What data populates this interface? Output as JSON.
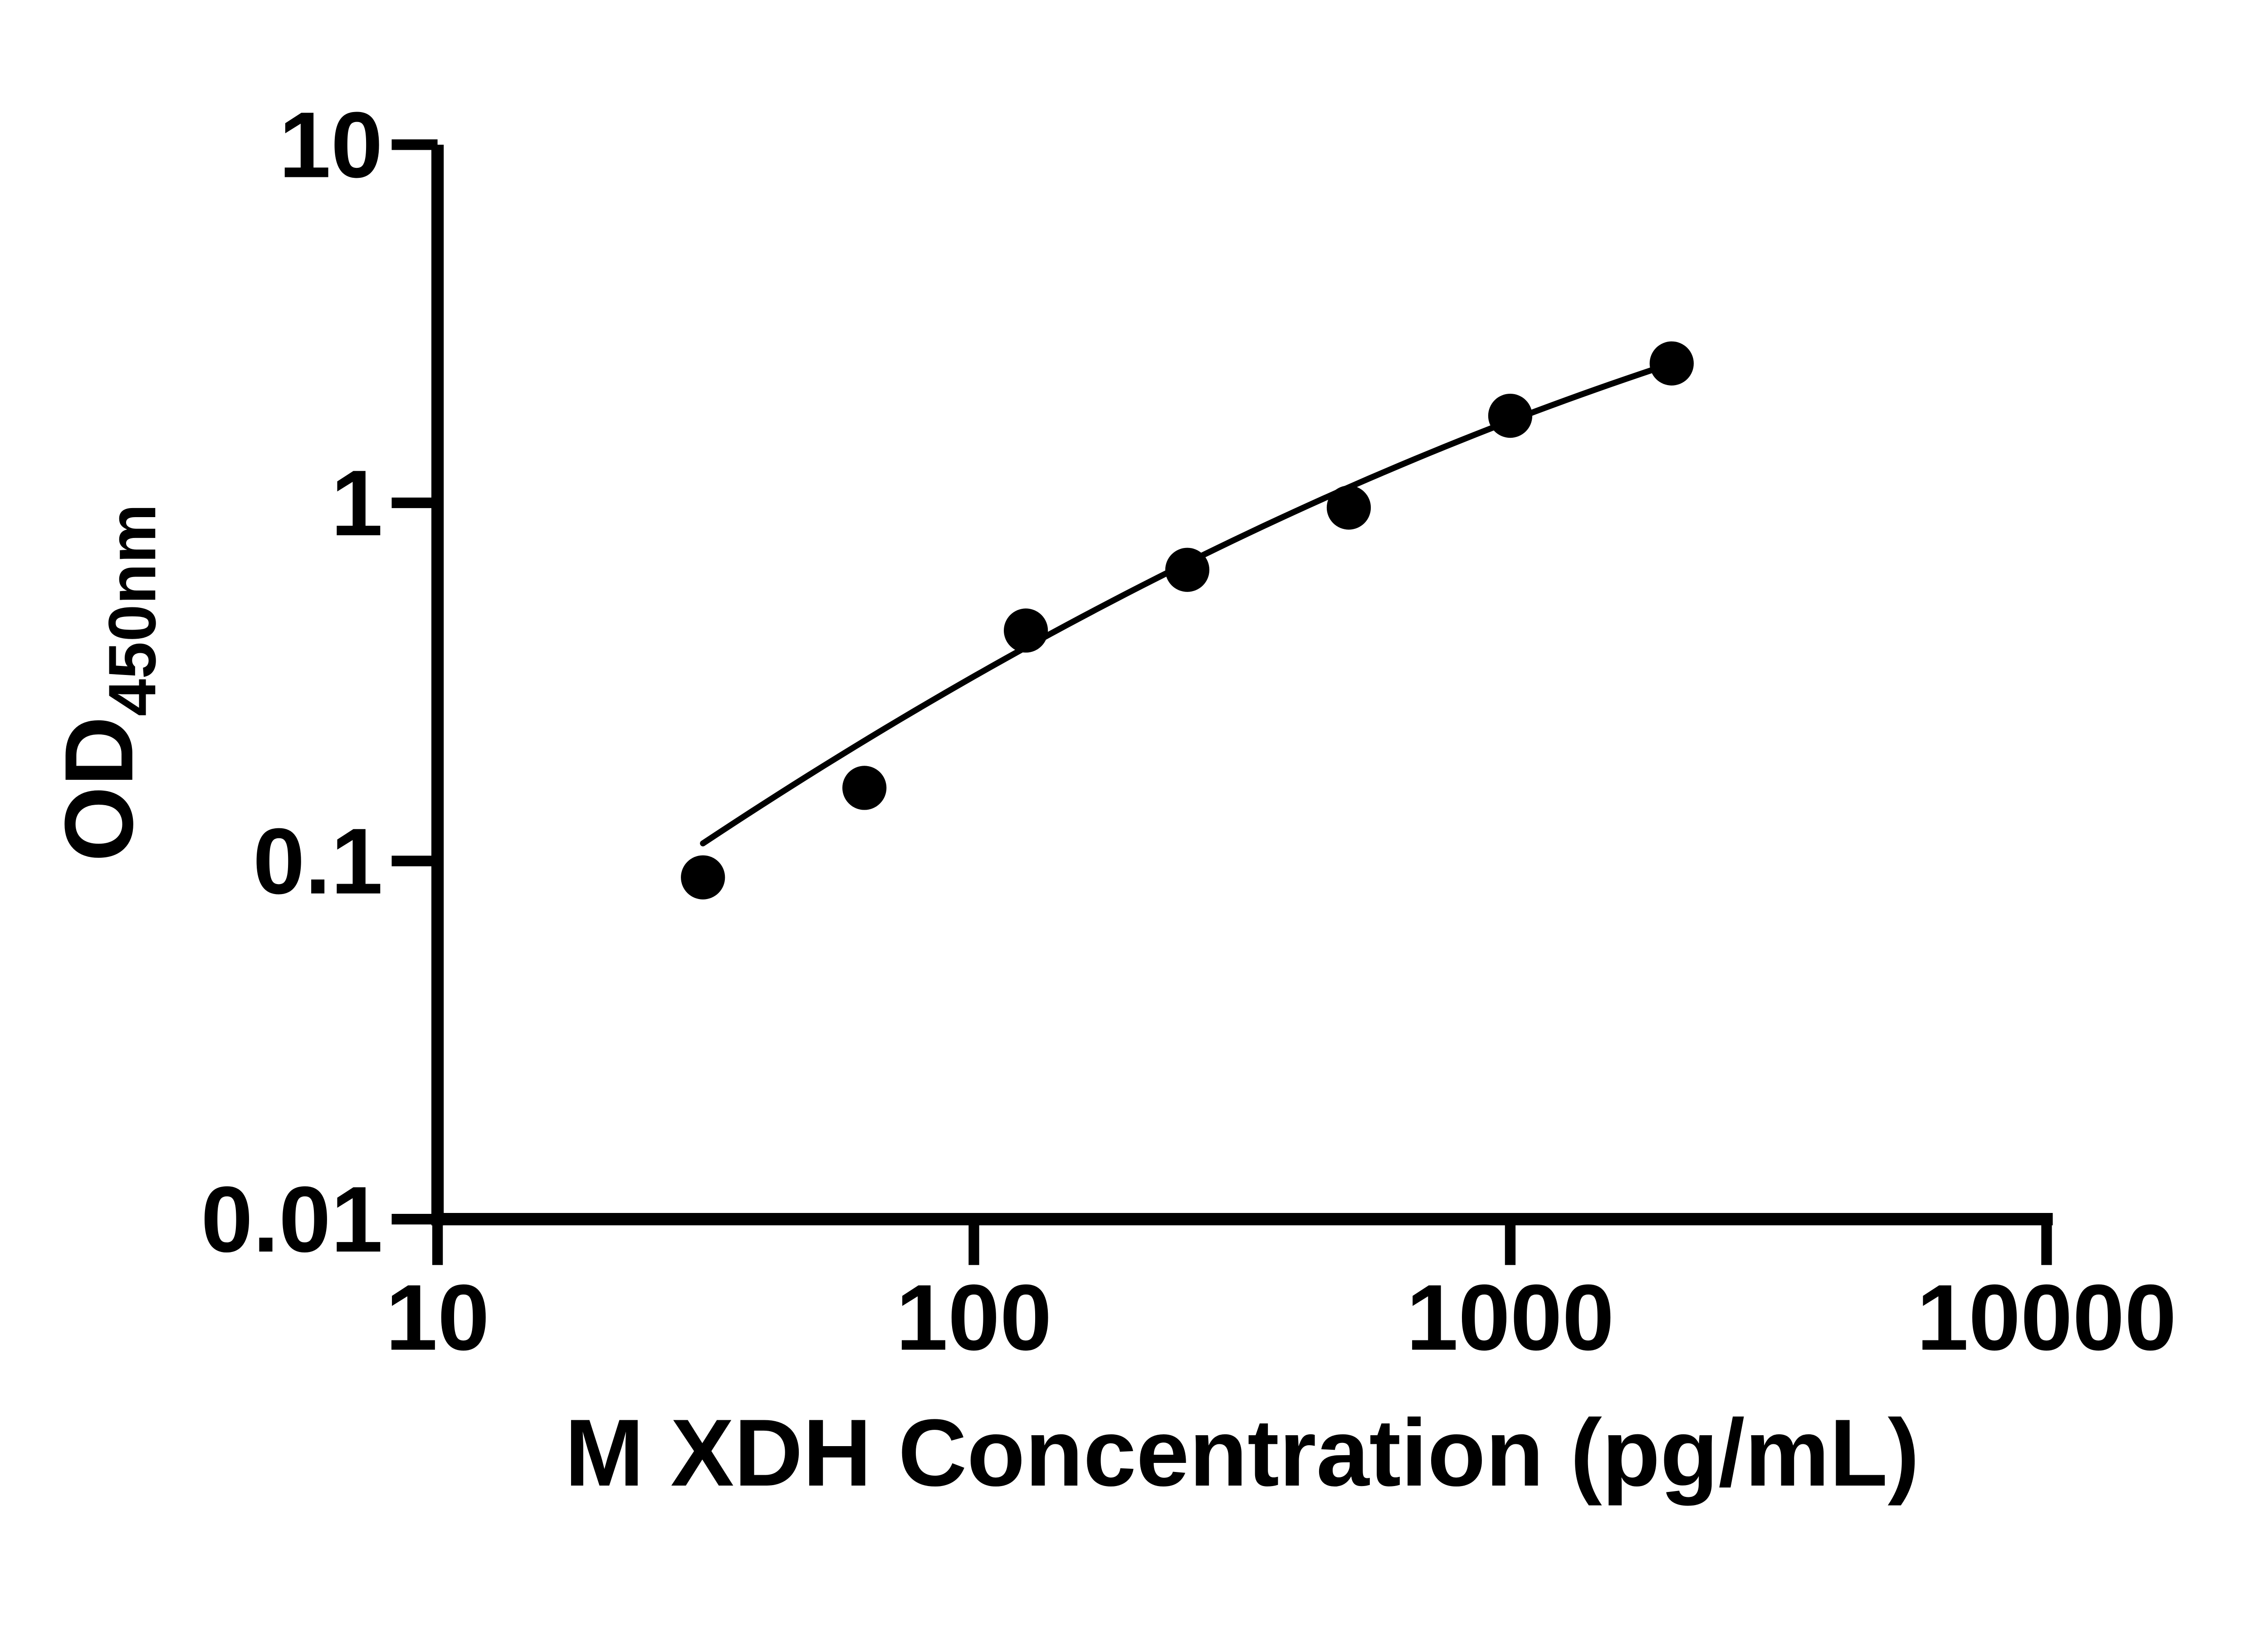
{
  "chart_data": {
    "type": "scatter",
    "title": "",
    "xlabel": "M XDH Concentration (pg/mL)",
    "ylabel": "OD",
    "ylabel_subscript": "450nm",
    "x_scale": "log10",
    "y_scale": "log10",
    "xlim": [
      10,
      10000
    ],
    "ylim": [
      0.01,
      10
    ],
    "grid": false,
    "legend": null,
    "x_ticks": [
      {
        "value": 10,
        "label": "10"
      },
      {
        "value": 100,
        "label": "100"
      },
      {
        "value": 1000,
        "label": "1000"
      },
      {
        "value": 10000,
        "label": "10000"
      }
    ],
    "y_ticks": [
      {
        "value": 10,
        "label": "10"
      },
      {
        "value": 1,
        "label": "1"
      },
      {
        "value": 0.1,
        "label": "0.1"
      },
      {
        "value": 0.01,
        "label": "0.01"
      }
    ],
    "points": [
      {
        "concentration_pg_ml": 31.25,
        "od": 0.09
      },
      {
        "concentration_pg_ml": 62.5,
        "od": 0.16
      },
      {
        "concentration_pg_ml": 125,
        "od": 0.44
      },
      {
        "concentration_pg_ml": 250,
        "od": 0.65
      },
      {
        "concentration_pg_ml": 500,
        "od": 0.97
      },
      {
        "concentration_pg_ml": 1000,
        "od": 1.75
      },
      {
        "concentration_pg_ml": 2000,
        "od": 2.45
      }
    ],
    "fit_curve": {
      "model": "quadratic in log10-log10 space: v = v_center + slope*(u-u_center) + curvature*(u-u_center)^2",
      "u_center": 2.3979,
      "v_center": -0.1675,
      "slope": 0.7418,
      "curvature": -0.1391,
      "x_start": 31.25,
      "x_end": 2000
    },
    "marker": {
      "shape": "circle",
      "color": "#000000"
    },
    "line_color": "#000000",
    "axis_color": "#000000",
    "text_color": "#000000",
    "background": "#ffffff"
  }
}
